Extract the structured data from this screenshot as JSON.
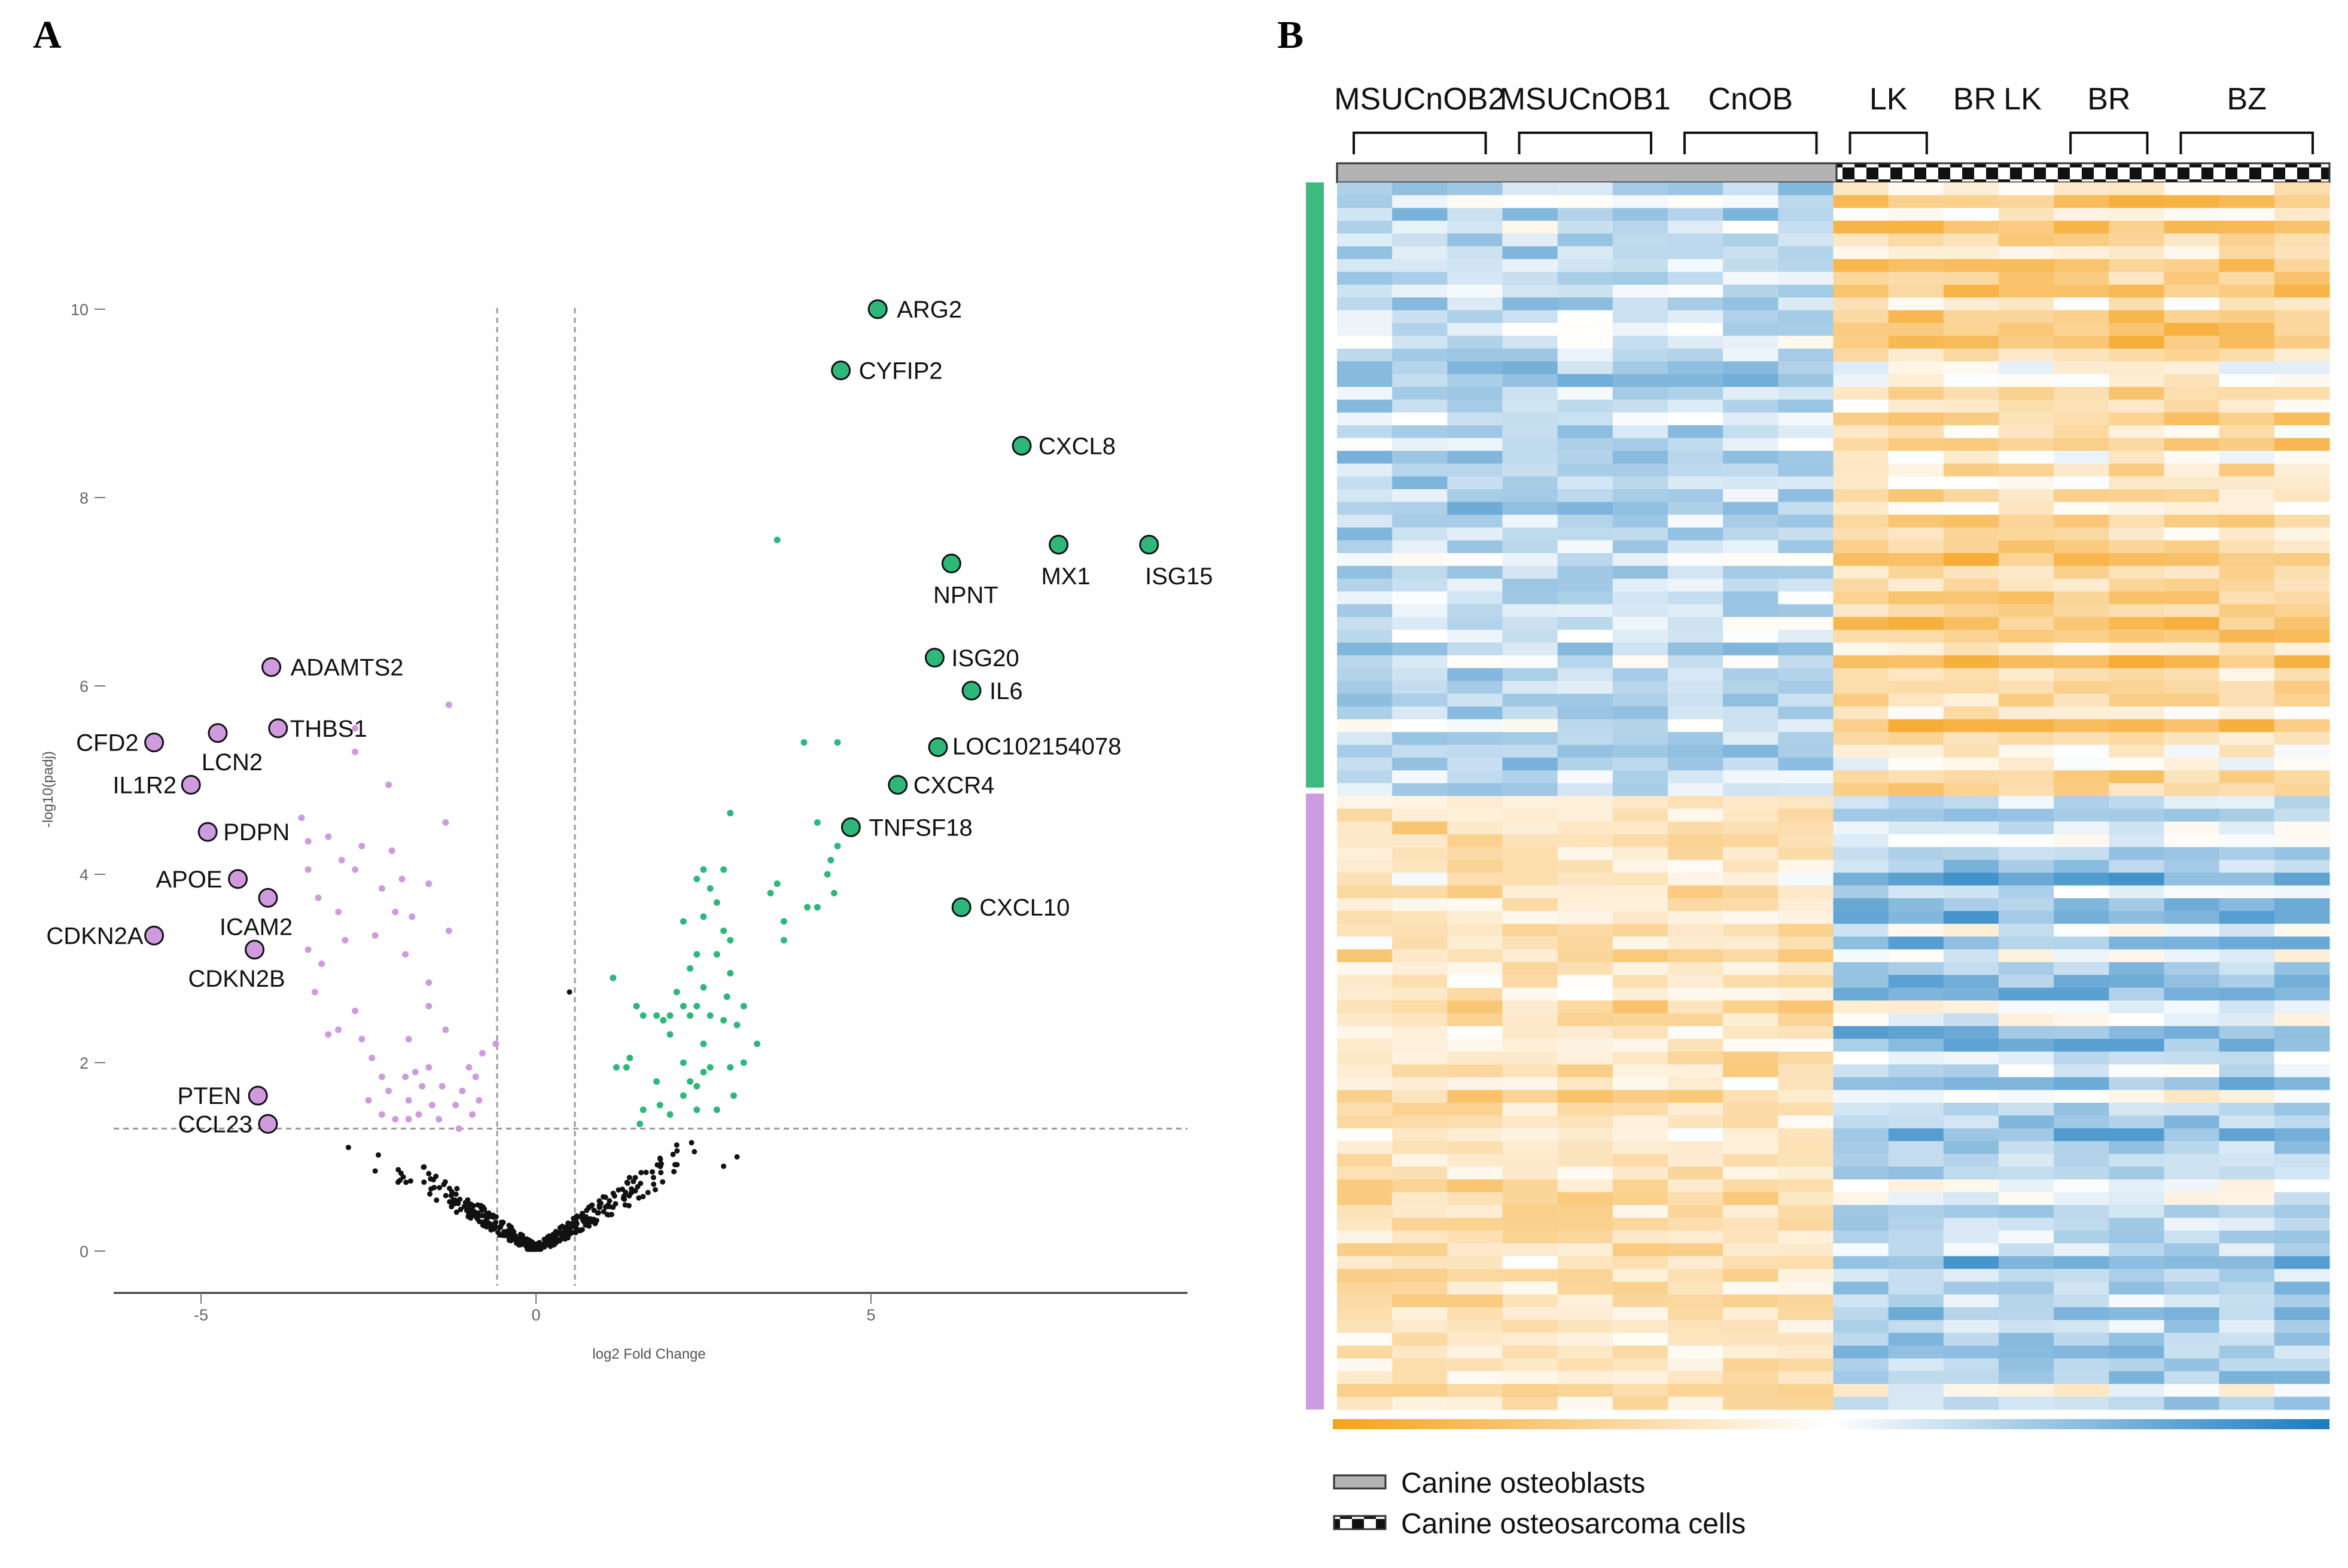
{
  "panels": {
    "a_label": "A",
    "b_label": "B"
  },
  "colors": {
    "up": "#2db87a",
    "down": "#cf9ade",
    "ns": "#111111",
    "heat_low": "#f6a21c",
    "heat_mid": "#ffffff",
    "heat_high": "#1a7bc0",
    "osteoblast_bar": "#b3b3b3"
  },
  "chart_data": [
    {
      "type": "scatter",
      "title": "",
      "xlabel": "log2 Fold Change",
      "ylabel": "-log10(padj)",
      "xlim": [
        -6.3,
        9.8
      ],
      "ylim": [
        -0.4,
        10.8
      ],
      "xticks": [
        -5,
        0,
        5
      ],
      "yticks": [
        0,
        2,
        4,
        6,
        8,
        10
      ],
      "thresholds": {
        "log2fc": [
          -0.58,
          0.58
        ],
        "padj_log10": 1.3
      },
      "labeled_genes": [
        {
          "gene": "ARG2",
          "x": 5.1,
          "y": 10.0,
          "group": "up"
        },
        {
          "gene": "CYFIP2",
          "x": 4.55,
          "y": 9.35,
          "group": "up"
        },
        {
          "gene": "CXCL8",
          "x": 7.25,
          "y": 8.55,
          "group": "up"
        },
        {
          "gene": "MX1",
          "x": 7.8,
          "y": 7.5,
          "group": "up"
        },
        {
          "gene": "ISG15",
          "x": 9.15,
          "y": 7.5,
          "group": "up"
        },
        {
          "gene": "NPNT",
          "x": 6.2,
          "y": 7.3,
          "group": "up"
        },
        {
          "gene": "ISG20",
          "x": 5.95,
          "y": 6.3,
          "group": "up"
        },
        {
          "gene": "IL6",
          "x": 6.5,
          "y": 5.95,
          "group": "up"
        },
        {
          "gene": "LOC102154078",
          "x": 6.0,
          "y": 5.35,
          "group": "up"
        },
        {
          "gene": "CXCR4",
          "x": 5.4,
          "y": 4.95,
          "group": "up"
        },
        {
          "gene": "TNFSF18",
          "x": 4.7,
          "y": 4.5,
          "group": "up"
        },
        {
          "gene": "CXCL10",
          "x": 6.35,
          "y": 3.65,
          "group": "up"
        },
        {
          "gene": "ADAMTS2",
          "x": -3.95,
          "y": 6.2,
          "group": "down"
        },
        {
          "gene": "THBS1",
          "x": -3.85,
          "y": 5.55,
          "group": "down"
        },
        {
          "gene": "LCN2",
          "x": -4.75,
          "y": 5.5,
          "group": "down"
        },
        {
          "gene": "CFD2",
          "x": -5.7,
          "y": 5.4,
          "group": "down"
        },
        {
          "gene": "IL1R2",
          "x": -5.15,
          "y": 4.95,
          "group": "down"
        },
        {
          "gene": "PDPN",
          "x": -4.9,
          "y": 4.45,
          "group": "down"
        },
        {
          "gene": "APOE",
          "x": -4.45,
          "y": 3.95,
          "group": "down"
        },
        {
          "gene": "ICAM2",
          "x": -4.0,
          "y": 3.75,
          "group": "down"
        },
        {
          "gene": "CDKN2A",
          "x": -5.7,
          "y": 3.35,
          "group": "down"
        },
        {
          "gene": "CDKN2B",
          "x": -4.2,
          "y": 3.2,
          "group": "down"
        },
        {
          "gene": "PTEN",
          "x": -4.15,
          "y": 1.65,
          "group": "down"
        },
        {
          "gene": "CCL23",
          "x": -4.0,
          "y": 1.35,
          "group": "down"
        }
      ],
      "background_points": {
        "up": [
          [
            3.6,
            7.55
          ],
          [
            4.0,
            5.4
          ],
          [
            4.5,
            5.4
          ],
          [
            2.9,
            4.65
          ],
          [
            4.2,
            4.55
          ],
          [
            4.5,
            4.3
          ],
          [
            4.4,
            4.15
          ],
          [
            4.35,
            4.0
          ],
          [
            4.2,
            3.65
          ],
          [
            4.45,
            3.8
          ],
          [
            4.05,
            3.65
          ],
          [
            3.6,
            3.9
          ],
          [
            3.7,
            3.5
          ],
          [
            3.5,
            3.8
          ],
          [
            2.5,
            4.05
          ],
          [
            2.8,
            4.05
          ],
          [
            2.6,
            3.85
          ],
          [
            2.4,
            3.95
          ],
          [
            2.7,
            3.7
          ],
          [
            2.5,
            3.55
          ],
          [
            2.8,
            3.4
          ],
          [
            2.9,
            3.3
          ],
          [
            2.7,
            3.15
          ],
          [
            2.4,
            3.15
          ],
          [
            2.2,
            3.5
          ],
          [
            2.3,
            3.0
          ],
          [
            2.9,
            2.95
          ],
          [
            2.5,
            2.8
          ],
          [
            2.1,
            2.75
          ],
          [
            2.2,
            2.6
          ],
          [
            2.4,
            2.6
          ],
          [
            2.0,
            2.5
          ],
          [
            2.3,
            2.5
          ],
          [
            1.9,
            2.45
          ],
          [
            2.6,
            2.5
          ],
          [
            2.8,
            2.45
          ],
          [
            3.0,
            2.4
          ],
          [
            2.85,
            2.7
          ],
          [
            3.1,
            2.6
          ],
          [
            1.5,
            2.6
          ],
          [
            1.6,
            2.5
          ],
          [
            1.8,
            2.5
          ],
          [
            2.0,
            2.3
          ],
          [
            2.5,
            2.2
          ],
          [
            2.2,
            2.0
          ],
          [
            2.6,
            1.95
          ],
          [
            2.3,
            1.8
          ],
          [
            2.5,
            1.9
          ],
          [
            2.9,
            1.95
          ],
          [
            2.4,
            1.75
          ],
          [
            1.4,
            2.05
          ],
          [
            1.2,
            1.95
          ],
          [
            1.35,
            1.95
          ],
          [
            1.8,
            1.8
          ],
          [
            2.2,
            1.65
          ],
          [
            1.85,
            1.55
          ],
          [
            2.4,
            1.5
          ],
          [
            2.7,
            1.5
          ],
          [
            2.95,
            1.65
          ],
          [
            1.6,
            1.5
          ],
          [
            1.55,
            1.35
          ],
          [
            2.0,
            1.45
          ],
          [
            1.15,
            2.9
          ],
          [
            3.7,
            3.3
          ],
          [
            3.1,
            2.0
          ],
          [
            3.3,
            2.2
          ]
        ],
        "down": [
          [
            -1.3,
            5.8
          ],
          [
            -2.7,
            5.55
          ],
          [
            -2.7,
            5.3
          ],
          [
            -2.2,
            4.95
          ],
          [
            -1.35,
            4.55
          ],
          [
            -3.5,
            4.6
          ],
          [
            -3.4,
            4.35
          ],
          [
            -3.1,
            4.4
          ],
          [
            -2.6,
            4.3
          ],
          [
            -2.9,
            4.15
          ],
          [
            -2.7,
            4.05
          ],
          [
            -2.15,
            4.25
          ],
          [
            -3.4,
            4.05
          ],
          [
            -2.0,
            3.95
          ],
          [
            -2.3,
            3.85
          ],
          [
            -1.6,
            3.9
          ],
          [
            -3.25,
            3.75
          ],
          [
            -2.1,
            3.6
          ],
          [
            -1.85,
            3.55
          ],
          [
            -2.95,
            3.6
          ],
          [
            -2.4,
            3.35
          ],
          [
            -2.85,
            3.3
          ],
          [
            -1.3,
            3.4
          ],
          [
            -3.4,
            3.2
          ],
          [
            -3.2,
            3.05
          ],
          [
            -1.6,
            2.85
          ],
          [
            -1.95,
            3.15
          ],
          [
            -3.3,
            2.75
          ],
          [
            -2.7,
            2.55
          ],
          [
            -1.6,
            2.6
          ],
          [
            -3.1,
            2.3
          ],
          [
            -2.95,
            2.35
          ],
          [
            -2.6,
            2.25
          ],
          [
            -1.9,
            2.25
          ],
          [
            -1.35,
            2.35
          ],
          [
            -2.45,
            2.05
          ],
          [
            -0.6,
            2.2
          ],
          [
            -0.8,
            2.1
          ],
          [
            -1.0,
            1.95
          ],
          [
            -0.9,
            1.85
          ],
          [
            -1.1,
            1.7
          ],
          [
            -1.8,
            1.9
          ],
          [
            -1.95,
            1.85
          ],
          [
            -1.6,
            1.95
          ],
          [
            -1.7,
            1.75
          ],
          [
            -1.4,
            1.75
          ],
          [
            -2.3,
            1.85
          ],
          [
            -2.2,
            1.7
          ],
          [
            -2.5,
            1.6
          ],
          [
            -1.9,
            1.6
          ],
          [
            -1.55,
            1.55
          ],
          [
            -1.2,
            1.55
          ],
          [
            -0.85,
            1.6
          ],
          [
            -0.95,
            1.45
          ],
          [
            -1.9,
            1.4
          ],
          [
            -1.75,
            1.45
          ],
          [
            -1.45,
            1.4
          ],
          [
            -2.1,
            1.4
          ],
          [
            -2.3,
            1.45
          ],
          [
            -1.15,
            1.3
          ]
        ]
      }
    },
    {
      "type": "heatmap",
      "title": "",
      "group_labels": [
        "MSUCnOB2",
        "MSUCnOB1",
        "CnOB",
        "LK",
        "BR",
        "LK",
        "BR",
        "BZ"
      ],
      "columns_per_group": [
        3,
        3,
        3,
        2,
        1,
        1,
        2,
        3
      ],
      "sample_types": [
        "osteoblast",
        "osteoblast",
        "osteoblast",
        "osteosarcoma",
        "osteosarcoma",
        "osteosarcoma",
        "osteosarcoma",
        "osteosarcoma"
      ],
      "row_clusters": [
        {
          "name": "up",
          "rows": 48
        },
        {
          "name": "down",
          "rows": 48
        }
      ],
      "color_scale": [
        "orange (low)",
        "white",
        "blue (high)"
      ],
      "legend": [
        {
          "label": "Canine osteoblasts",
          "pattern": "solid-gray"
        },
        {
          "label": "Canine osteosarcoma cells",
          "pattern": "checker"
        }
      ]
    }
  ]
}
